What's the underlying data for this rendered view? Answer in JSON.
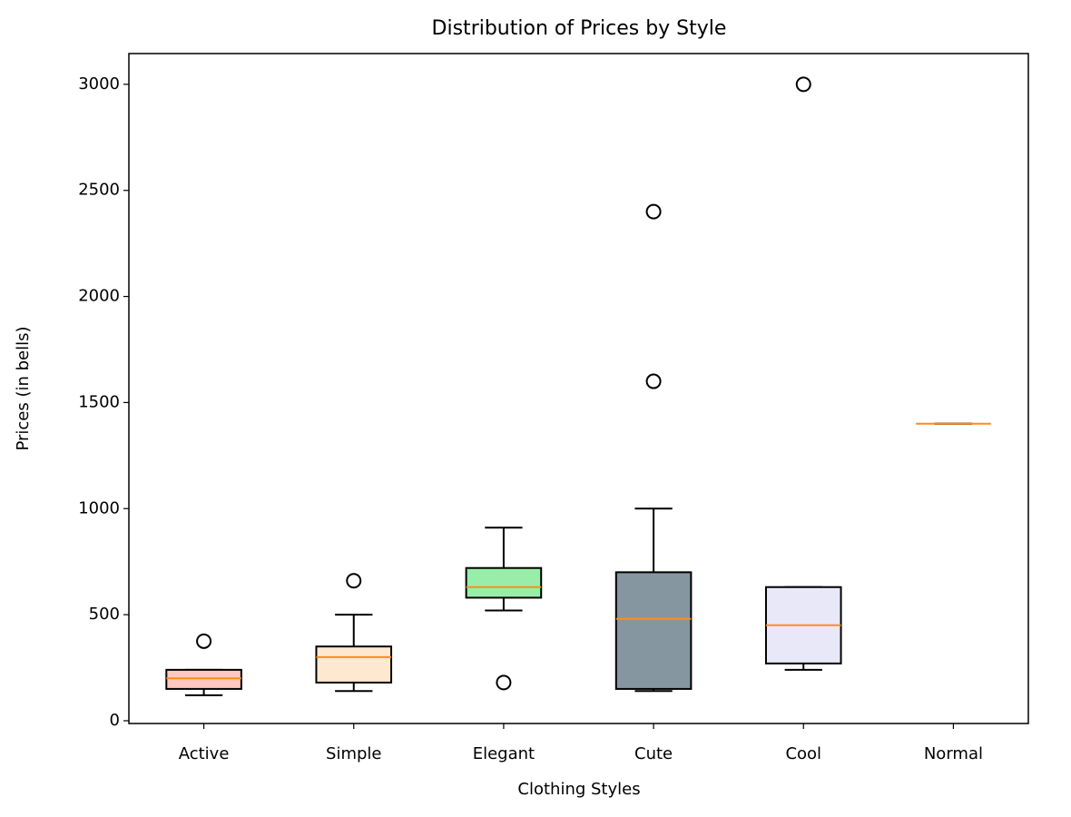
{
  "chart_data": {
    "type": "box",
    "title": "Distribution of Prices by Style",
    "x_label": "Clothing Styles",
    "y_label": "Prices (in bells)",
    "categories": [
      "Active",
      "Simple",
      "Elegant",
      "Cute",
      "Cool",
      "Normal"
    ],
    "boxes": [
      {
        "whislo": 120,
        "q1": 150,
        "median": 200,
        "q3": 240,
        "whishi": 240,
        "fliers": [
          375
        ],
        "color": "#ffc8c0"
      },
      {
        "whislo": 140,
        "q1": 180,
        "median": 300,
        "q3": 350,
        "whishi": 500,
        "fliers": [
          660
        ],
        "color": "#ffe8d0"
      },
      {
        "whislo": 520,
        "q1": 580,
        "median": 630,
        "q3": 720,
        "whishi": 910,
        "fliers": [
          180
        ],
        "color": "#98eea8"
      },
      {
        "whislo": 140,
        "q1": 150,
        "median": 480,
        "q3": 700,
        "whishi": 1000,
        "fliers": [
          1600,
          2400
        ],
        "color": "#8696a0"
      },
      {
        "whislo": 240,
        "q1": 270,
        "median": 450,
        "q3": 630,
        "whishi": 630,
        "fliers": [
          3000
        ],
        "color": "#e8e8f8"
      },
      {
        "whislo": 1400,
        "q1": 1400,
        "median": 1400,
        "q3": 1400,
        "whishi": 1400,
        "fliers": [],
        "color": "#add8e6"
      }
    ],
    "median_color": "#ff8c1a",
    "ylim": [
      -13,
      3145
    ],
    "yticks": [
      0,
      500,
      1000,
      1500,
      2000,
      2500,
      3000
    ]
  }
}
